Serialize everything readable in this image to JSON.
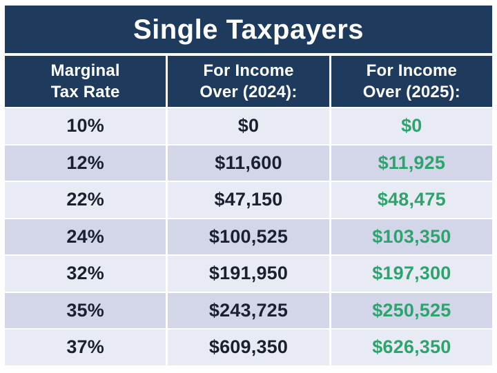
{
  "title": "Single Taxpayers",
  "colors": {
    "navy": "#1e3a5c",
    "row_light": "#e9ebf4",
    "row_dark": "#d2d6e8",
    "green": "#2fa36e",
    "dark_text": "#1b2030",
    "header_text": "#ffffff"
  },
  "table": {
    "columns": [
      {
        "line1": "Marginal",
        "line2": "Tax Rate"
      },
      {
        "line1": "For Income",
        "line2": "Over (2024):"
      },
      {
        "line1": "For Income",
        "line2": "Over (2025):"
      }
    ],
    "rows": [
      {
        "rate": "10%",
        "income_2024": "$0",
        "income_2025": "$0"
      },
      {
        "rate": "12%",
        "income_2024": "$11,600",
        "income_2025": "$11,925"
      },
      {
        "rate": "22%",
        "income_2024": "$47,150",
        "income_2025": "$48,475"
      },
      {
        "rate": "24%",
        "income_2024": "$100,525",
        "income_2025": "$103,350"
      },
      {
        "rate": "32%",
        "income_2024": "$191,950",
        "income_2025": "$197,300"
      },
      {
        "rate": "35%",
        "income_2024": "$243,725",
        "income_2025": "$250,525"
      },
      {
        "rate": "37%",
        "income_2024": "$609,350",
        "income_2025": "$626,350"
      }
    ]
  },
  "chart_data": {
    "type": "table",
    "title": "Single Taxpayers",
    "columns": [
      "Marginal Tax Rate",
      "For Income Over (2024):",
      "For Income Over (2025):"
    ],
    "rows": [
      [
        "10%",
        "$0",
        "$0"
      ],
      [
        "12%",
        "$11,600",
        "$11,925"
      ],
      [
        "22%",
        "$47,150",
        "$48,475"
      ],
      [
        "24%",
        "$100,525",
        "$103,350"
      ],
      [
        "32%",
        "$191,950",
        "$197,300"
      ],
      [
        "35%",
        "$243,725",
        "$250,525"
      ],
      [
        "37%",
        "$609,350",
        "$626,350"
      ]
    ],
    "layout_hints": {
      "header_background": "#1e3a5c",
      "alternating_row_colors": [
        "#e9ebf4",
        "#d2d6e8"
      ],
      "col3_text_color": "#2fa36e",
      "all_cells_centered": true
    }
  }
}
